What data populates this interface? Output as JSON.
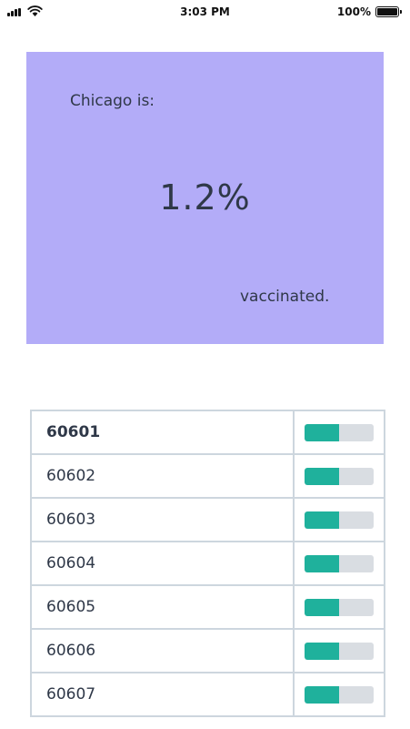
{
  "status": {
    "time": "3:03 PM",
    "battery_percent": "100%",
    "icons": [
      "signal-icon",
      "wifi-icon",
      "battery-icon"
    ]
  },
  "summary": {
    "prefix": "Chicago is:",
    "value": "1.2%",
    "suffix": "vaccinated.",
    "background_color": "#b3acf8"
  },
  "zip_table": {
    "bar_color": "#1fb19c",
    "track_color": "#d9dde2",
    "rows": [
      {
        "zip": "60601",
        "progress": 0.5
      },
      {
        "zip": "60602",
        "progress": 0.5
      },
      {
        "zip": "60603",
        "progress": 0.5
      },
      {
        "zip": "60604",
        "progress": 0.5
      },
      {
        "zip": "60605",
        "progress": 0.5
      },
      {
        "zip": "60606",
        "progress": 0.5
      },
      {
        "zip": "60607",
        "progress": 0.5
      }
    ]
  }
}
